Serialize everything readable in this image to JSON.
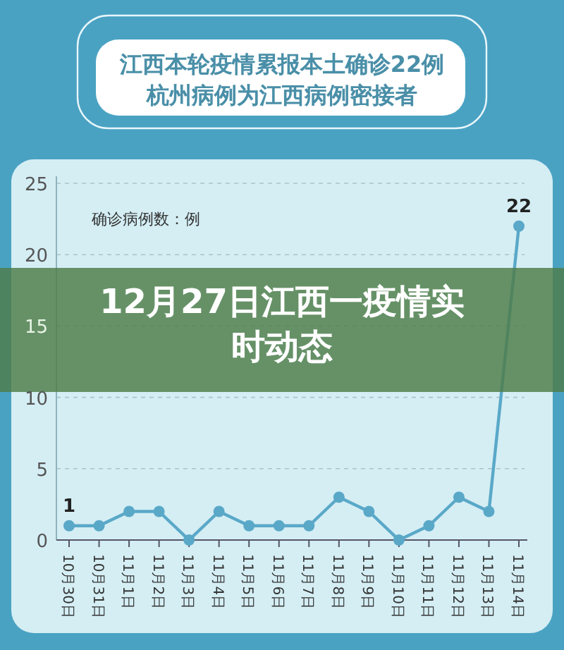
{
  "chart_data": {
    "type": "line",
    "title": "12月27日江西一疫情实时动态",
    "subtitle": "江西本轮疫情累报本土确诊22例杭州病例为江西病例密接者",
    "ylabel": "确诊病例数：例",
    "categories": [
      "10月30日",
      "10月31日",
      "11月1日",
      "11月2日",
      "11月3日",
      "11月4日",
      "11月5日",
      "11月6日",
      "11月7日",
      "11月8日",
      "11月9日",
      "11月10日",
      "11月11日",
      "11月12日",
      "11月13日",
      "11月14日"
    ],
    "series": [
      {
        "color": "#5aa8c8",
        "values": [
          1,
          1,
          2,
          2,
          0,
          2,
          1,
          1,
          1,
          3,
          2,
          0,
          1,
          3,
          2,
          22
        ],
        "value_labels": [
          "1",
          null,
          null,
          null,
          null,
          null,
          null,
          null,
          null,
          null,
          null,
          null,
          null,
          null,
          null,
          "22"
        ]
      }
    ],
    "ylim": [
      0,
      25
    ],
    "yticks": [
      0,
      5,
      10,
      15,
      20,
      25
    ],
    "grid": "y",
    "marker": "circle",
    "line_style": "solid"
  }
}
